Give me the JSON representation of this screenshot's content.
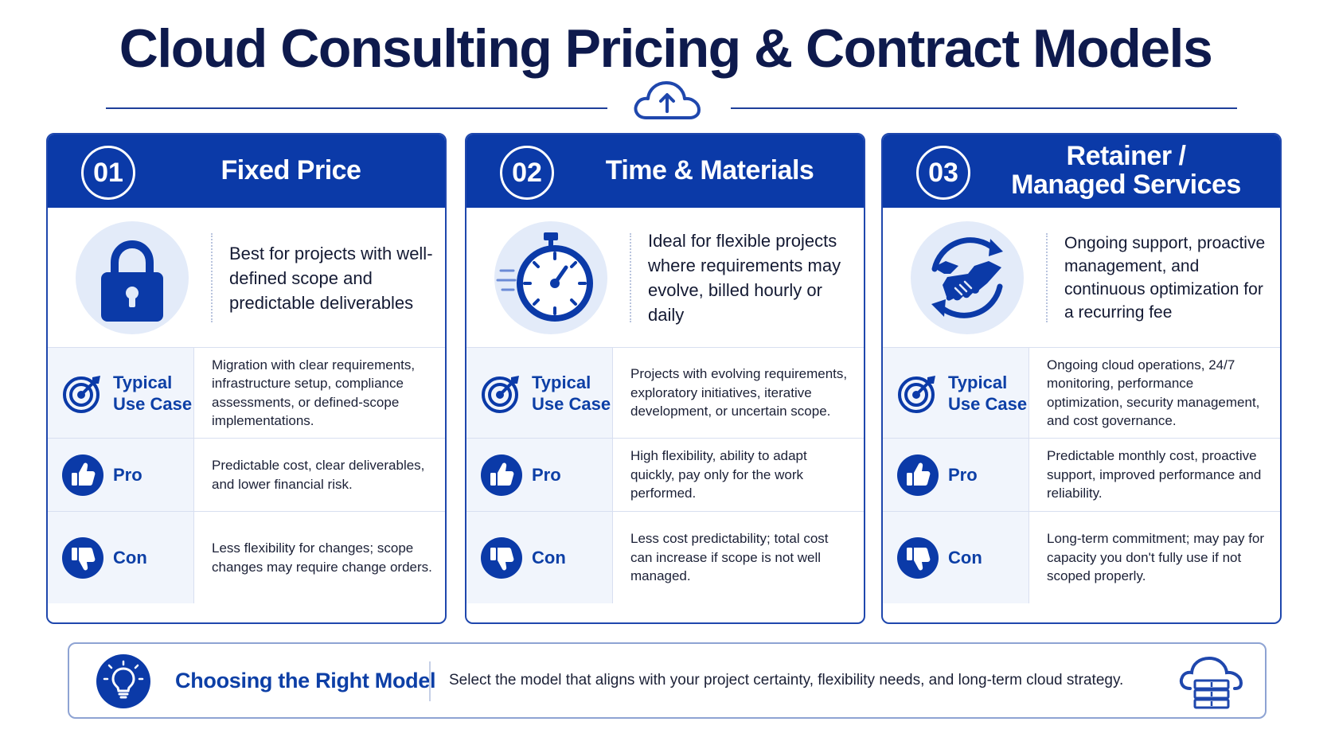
{
  "title": "Cloud Consulting Pricing & Contract Models",
  "colors": {
    "primary": "#0b3aa8",
    "dark_navy": "#0e1a4d",
    "soft_blue": "#e3ebf9",
    "row_bg": "#f1f5fc"
  },
  "models": [
    {
      "number": "01",
      "name": "Fixed Price",
      "icon": "padlock-icon",
      "intro": "Best for projects with well-defined scope and predictable deliverables",
      "rows": [
        {
          "label": "Typical Use Case",
          "icon": "target-icon",
          "text": "Migration with clear requirements, infrastructure setup, compliance assessments, or defined-scope implementations."
        },
        {
          "label": "Pro",
          "icon": "thumbs-up-icon",
          "text": "Predictable cost, clear deliverables, and lower financial risk."
        },
        {
          "label": "Con",
          "icon": "thumbs-down-icon",
          "text": "Less flexibility for changes; scope changes may require change orders."
        }
      ]
    },
    {
      "number": "02",
      "name": "Time & Materials",
      "icon": "stopwatch-icon",
      "intro": "Ideal for flexible projects where requirements may evolve, billed hourly or daily",
      "rows": [
        {
          "label": "Typical Use Case",
          "icon": "target-icon",
          "text": "Projects with evolving requirements, exploratory initiatives, iterative development, or uncertain scope."
        },
        {
          "label": "Pro",
          "icon": "thumbs-up-icon",
          "text": "High flexibility, ability to adapt quickly, pay only for the work performed."
        },
        {
          "label": "Con",
          "icon": "thumbs-down-icon",
          "text": "Less cost predictability; total cost can increase if scope is not well managed."
        }
      ]
    },
    {
      "number": "03",
      "name": "Retainer / Managed Services",
      "icon": "handshake-icon",
      "intro": "Ongoing support, proactive management, and continuous optimization for a recurring fee",
      "rows": [
        {
          "label": "Typical Use Case",
          "icon": "target-icon",
          "text": "Ongoing cloud operations, 24/7 monitoring, performance optimization, security management, and cost governance."
        },
        {
          "label": "Pro",
          "icon": "thumbs-up-icon",
          "text": "Predictable monthly cost, proactive support, improved performance and reliability."
        },
        {
          "label": "Con",
          "icon": "thumbs-down-icon",
          "text": "Long-term commitment; may pay for capacity you don't fully use if not scoped properly."
        }
      ]
    }
  ],
  "footer": {
    "title": "Choosing the Right Model",
    "text": "Select the model that aligns with your project certainty, flexibility needs, and long-term cloud strategy."
  }
}
